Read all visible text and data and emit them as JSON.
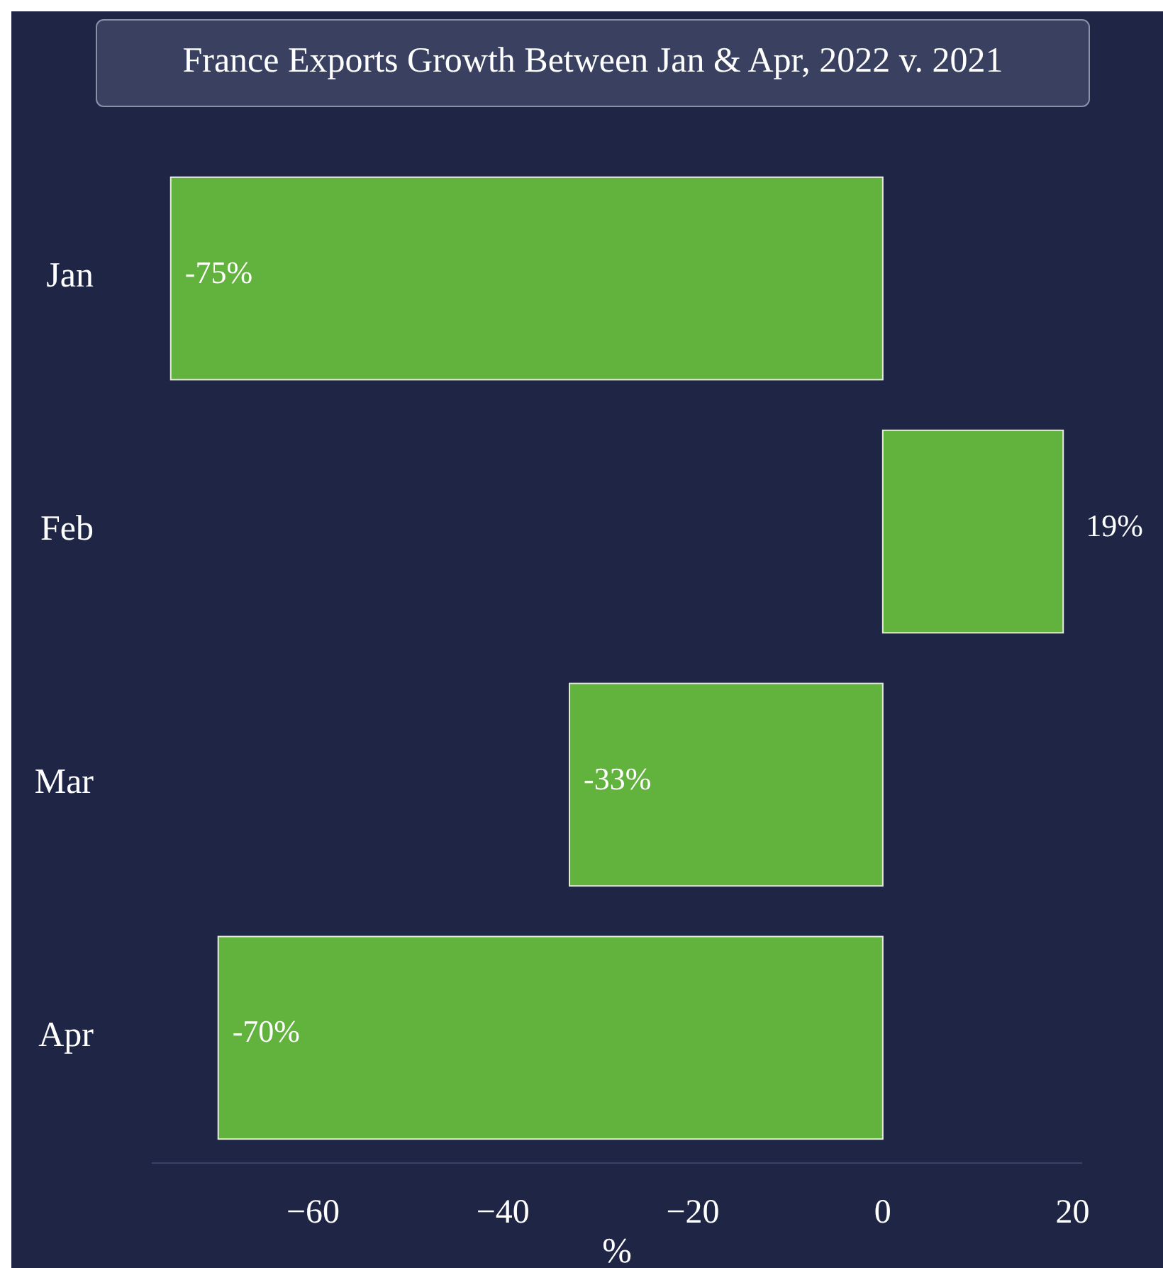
{
  "chart_data": {
    "type": "bar",
    "orientation": "horizontal",
    "title": "France Exports Growth Between Jan & Apr, 2022 v. 2021",
    "xlabel": "%",
    "categories": [
      "Jan",
      "Feb",
      "Mar",
      "Apr"
    ],
    "values": [
      -75,
      19,
      -33,
      -70
    ],
    "value_labels": [
      "-75%",
      "19%",
      "-33%",
      "-70%"
    ],
    "color": "#62b23e",
    "xlim": [
      -77,
      21
    ],
    "xticks": [
      {
        "value": -60,
        "label": "−60"
      },
      {
        "value": -40,
        "label": "−40"
      },
      {
        "value": -20,
        "label": "−20"
      },
      0,
      20
    ],
    "grid": false
  }
}
